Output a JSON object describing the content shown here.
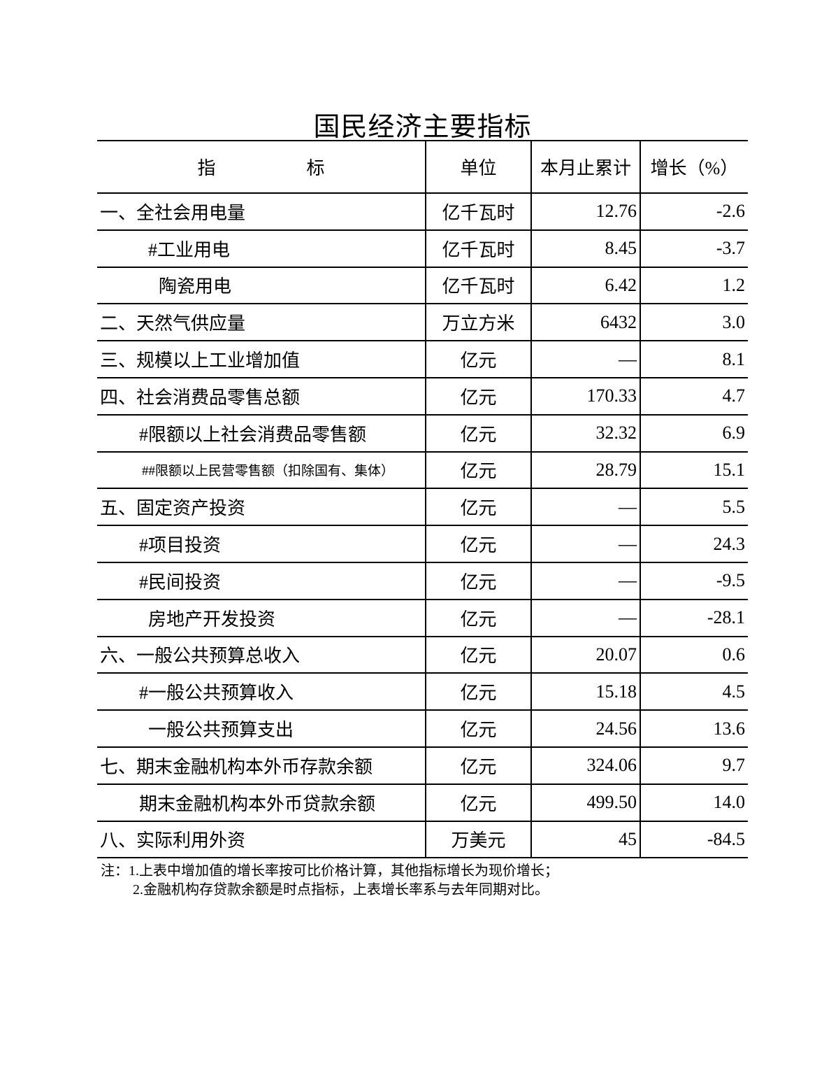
{
  "title": "国民经济主要指标",
  "headers": {
    "name": "指　　　　　标",
    "unit": "单位",
    "value": "本月止累计",
    "growth": "增长（%）"
  },
  "rows": [
    {
      "name": "一、全社会用电量",
      "indent": 0,
      "unit": "亿千瓦时",
      "value": "12.76",
      "growth": "-2.6"
    },
    {
      "name": "#工业用电",
      "indent": 2,
      "unit": "亿千瓦时",
      "value": "8.45",
      "growth": "-3.7"
    },
    {
      "name": "陶瓷用电",
      "indent": 3,
      "unit": "亿千瓦时",
      "value": "6.42",
      "growth": "1.2"
    },
    {
      "name": "二、天然气供应量",
      "indent": 0,
      "unit": "万立方米",
      "value": "6432",
      "growth": "3.0"
    },
    {
      "name": "三、规模以上工业增加值",
      "indent": 0,
      "unit": "亿元",
      "value": "—",
      "growth": "8.1"
    },
    {
      "name": "四、社会消费品零售总额",
      "indent": 0,
      "unit": "亿元",
      "value": "170.33",
      "growth": "4.7"
    },
    {
      "name": "#限额以上社会消费品零售额",
      "indent": 1,
      "unit": "亿元",
      "value": "32.32",
      "growth": "6.9"
    },
    {
      "name": "##限额以上民营零售额（扣除国有、集体）",
      "indent": 1,
      "small": true,
      "unit": "亿元",
      "value": "28.79",
      "growth": "15.1"
    },
    {
      "name": "五、固定资产投资",
      "indent": 0,
      "unit": "亿元",
      "value": "—",
      "growth": "5.5"
    },
    {
      "name": "#项目投资",
      "indent": 1,
      "unit": "亿元",
      "value": "—",
      "growth": "24.3"
    },
    {
      "name": "#民间投资",
      "indent": 1,
      "unit": "亿元",
      "value": "—",
      "growth": "-9.5"
    },
    {
      "name": "房地产开发投资",
      "indent": 2,
      "unit": "亿元",
      "value": "—",
      "growth": "-28.1"
    },
    {
      "name": "六、一般公共预算总收入",
      "indent": 0,
      "unit": "亿元",
      "value": "20.07",
      "growth": "0.6"
    },
    {
      "name": "#一般公共预算收入",
      "indent": 1,
      "unit": "亿元",
      "value": "15.18",
      "growth": "4.5"
    },
    {
      "name": "一般公共预算支出",
      "indent": 2,
      "unit": "亿元",
      "value": "24.56",
      "growth": "13.6"
    },
    {
      "name": "七、期末金融机构本外币存款余额",
      "indent": 0,
      "unit": "亿元",
      "value": "324.06",
      "growth": "9.7"
    },
    {
      "name": "期末金融机构本外币贷款余额",
      "indent": 1,
      "unit": "亿元",
      "value": "499.50",
      "growth": "14.0"
    },
    {
      "name": "八、实际利用外资",
      "indent": 0,
      "unit": "万美元",
      "value": "45",
      "growth": "-84.5"
    }
  ],
  "notes": [
    "注：1.上表中增加值的增长率按可比价格计算，其他指标增长为现价增长；",
    "2.金融机构存贷款余额是时点指标，上表增长率系与去年同期对比。"
  ]
}
